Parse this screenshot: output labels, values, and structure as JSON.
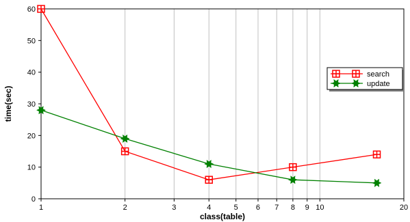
{
  "chart_data": {
    "type": "line",
    "title": "",
    "xlabel": "class(table)",
    "ylabel": "time(sec)",
    "xscale": "log",
    "xlim": [
      1,
      20
    ],
    "ylim": [
      0,
      60
    ],
    "x_ticks": [
      1,
      2,
      3,
      4,
      5,
      6,
      7,
      8,
      9,
      10,
      20
    ],
    "y_ticks": [
      0,
      10,
      20,
      30,
      40,
      50,
      60
    ],
    "grid": "vertical",
    "legend_position": "right",
    "series": [
      {
        "name": "search",
        "color": "#ff0000",
        "marker": "square-plus",
        "x": [
          1,
          2,
          4,
          8,
          16
        ],
        "y": [
          60,
          15,
          6,
          10,
          14
        ]
      },
      {
        "name": "update",
        "color": "#008000",
        "marker": "star",
        "x": [
          1,
          2,
          4,
          8,
          16
        ],
        "y": [
          28,
          19,
          11,
          6,
          5
        ]
      }
    ]
  }
}
